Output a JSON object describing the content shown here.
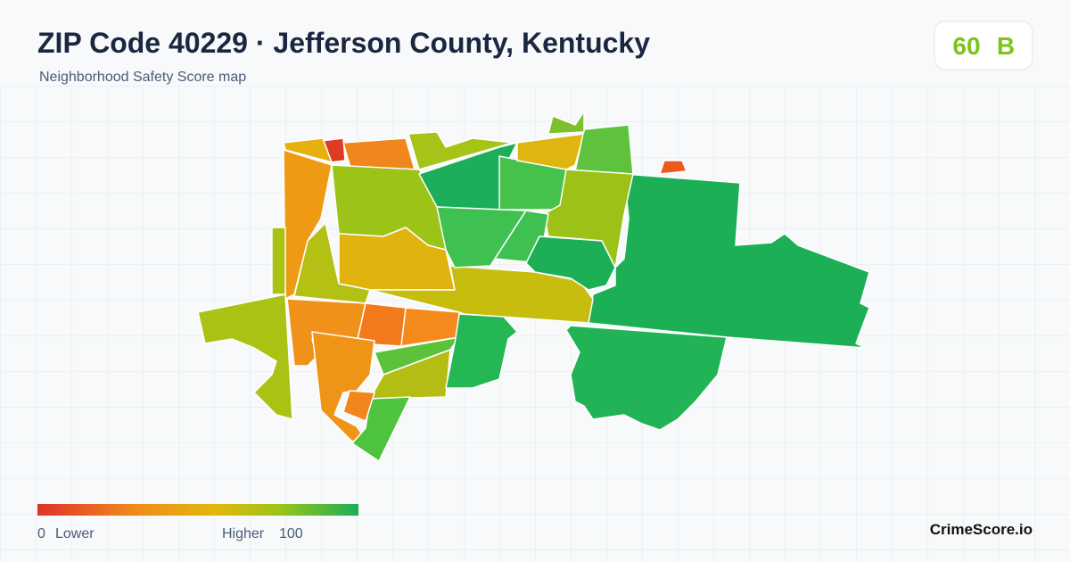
{
  "header": {
    "title": "ZIP Code 40229 · Jefferson County, Kentucky",
    "subtitle": "Neighborhood Safety Score map"
  },
  "score": {
    "value": 60,
    "grade": "B"
  },
  "legend": {
    "min": 0,
    "min_label": "Lower",
    "max_label": "Higher",
    "max": 100
  },
  "brand": "CrimeScore.io"
}
